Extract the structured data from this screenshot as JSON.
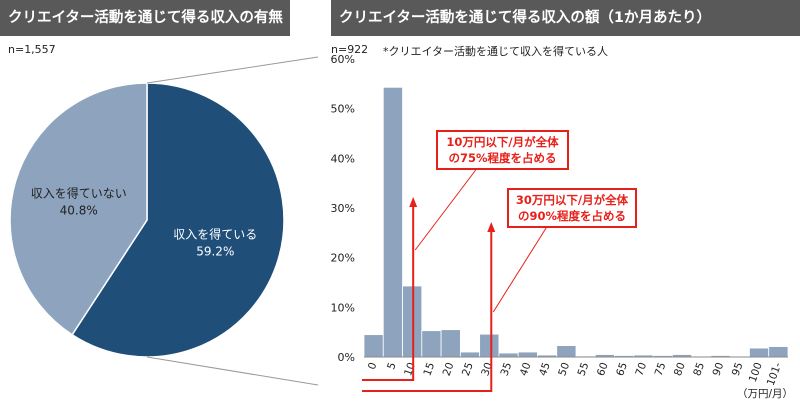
{
  "left_panel": {
    "title": "クリエイター活動を通じて得る収入の有無",
    "sample_size": "n=1,557"
  },
  "right_panel": {
    "title": "クリエイター活動を通じて得る収入の額（1か月あたり）",
    "sample_size": "n=922",
    "note": "*クリエイター活動を通じて収入を得ている人",
    "unit_label": "（万円/月）"
  },
  "annotations": {
    "a1_line1": "10万円以下/月が全体",
    "a1_line2": "の75%程度を占める",
    "a2_line1": "30万円以下/月が全体",
    "a2_line2": "の90%程度を占める"
  },
  "colors": {
    "pie_earning": "#1f4e79",
    "pie_not_earning": "#8da3be",
    "bar": "#8da3be",
    "annotation_red": "#e8201a",
    "banner": "#595959"
  },
  "chart_data": [
    {
      "type": "pie",
      "title": "クリエイター活動を通じて得る収入の有無",
      "slices": [
        {
          "label": "収入を得ている",
          "value": 59.2,
          "display": "59.2%"
        },
        {
          "label": "収入を得ていない",
          "value": 40.8,
          "display": "40.8%"
        }
      ]
    },
    {
      "type": "bar",
      "title": "クリエイター活動を通じて得る収入の額（1か月あたり）",
      "categories": [
        "0",
        "5",
        "10",
        "15",
        "20",
        "25",
        "30",
        "35",
        "40",
        "45",
        "50",
        "55",
        "60",
        "65",
        "70",
        "75",
        "80",
        "85",
        "90",
        "95",
        "100",
        "101-"
      ],
      "values": [
        4.5,
        54.3,
        14.3,
        5.3,
        5.5,
        1.0,
        4.6,
        0.8,
        1.0,
        0.4,
        2.3,
        0.2,
        0.5,
        0.3,
        0.4,
        0.3,
        0.5,
        0.1,
        0.3,
        0.1,
        1.8,
        2.1
      ],
      "ylim": [
        0,
        60
      ],
      "yticks": [
        0,
        10,
        20,
        30,
        40,
        50,
        60
      ],
      "ytick_labels": [
        "0%",
        "10%",
        "20%",
        "30%",
        "40%",
        "50%",
        "60%"
      ],
      "xlabel": "（万円/月）",
      "grid": false
    }
  ]
}
